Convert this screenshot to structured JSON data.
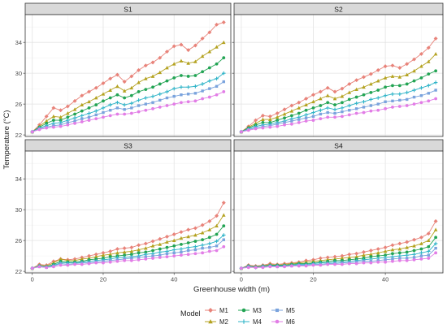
{
  "chart_data": {
    "type": "line",
    "xlabel": "Greenhouse width (m)",
    "ylabel": "Temperature (°C)",
    "xlim": [
      -2,
      56
    ],
    "ylim": [
      21.8,
      37.6
    ],
    "x_ticks": [
      0,
      20,
      40
    ],
    "y_ticks": [
      22,
      26,
      30,
      34
    ],
    "grid": true,
    "legend_position": "bottom",
    "legend_title": "Model",
    "series_meta": [
      {
        "name": "M1",
        "color": "#E8837A",
        "marker": "diamond"
      },
      {
        "name": "M2",
        "color": "#B4A220",
        "marker": "triangle"
      },
      {
        "name": "M3",
        "color": "#23A454",
        "marker": "circle"
      },
      {
        "name": "M4",
        "color": "#2FB4C8",
        "marker": "plus"
      },
      {
        "name": "M5",
        "color": "#7AA3DD",
        "marker": "square"
      },
      {
        "name": "M6",
        "color": "#E27DE6",
        "marker": "circle"
      }
    ],
    "x": [
      0,
      2,
      4,
      6,
      8,
      10,
      12,
      14,
      16,
      18,
      20,
      22,
      24,
      26,
      28,
      30,
      32,
      34,
      36,
      38,
      40,
      42,
      44,
      46,
      48,
      50,
      52,
      54
    ],
    "panels": [
      {
        "title": "S1",
        "series": [
          {
            "name": "M1",
            "values": [
              22.4,
              23.3,
              24.4,
              25.5,
              25.2,
              25.7,
              26.4,
              27.1,
              27.6,
              28.1,
              28.7,
              29.3,
              29.8,
              28.9,
              29.6,
              30.4,
              31.0,
              31.4,
              32.0,
              32.8,
              33.5,
              33.7,
              33.0,
              33.6,
              34.5,
              35.3,
              36.3,
              36.6
            ]
          },
          {
            "name": "M2",
            "values": [
              22.4,
              23.1,
              23.8,
              24.4,
              24.3,
              24.8,
              25.3,
              25.9,
              26.3,
              26.8,
              27.3,
              27.8,
              28.3,
              27.7,
              28.1,
              28.8,
              29.3,
              29.6,
              30.1,
              30.7,
              31.2,
              31.6,
              31.3,
              31.5,
              32.2,
              32.8,
              33.4,
              34.0
            ]
          },
          {
            "name": "M3",
            "values": [
              22.4,
              23.0,
              23.5,
              23.9,
              23.9,
              24.3,
              24.7,
              25.1,
              25.5,
              25.9,
              26.4,
              26.8,
              27.2,
              26.8,
              27.1,
              27.6,
              27.9,
              28.2,
              28.6,
              29.0,
              29.4,
              29.7,
              29.6,
              29.7,
              30.2,
              30.7,
              31.2,
              32.0
            ]
          },
          {
            "name": "M4",
            "values": [
              22.4,
              22.9,
              23.2,
              23.5,
              23.6,
              23.9,
              24.2,
              24.5,
              24.8,
              25.1,
              25.5,
              25.9,
              26.2,
              25.9,
              26.1,
              26.5,
              26.8,
              27.0,
              27.3,
              27.6,
              28.0,
              28.2,
              28.2,
              28.3,
              28.6,
              29.0,
              29.3,
              30.0
            ]
          },
          {
            "name": "M5",
            "values": [
              22.4,
              22.8,
              23.0,
              23.2,
              23.3,
              23.6,
              23.8,
              24.1,
              24.3,
              24.6,
              24.9,
              25.2,
              25.5,
              25.3,
              25.5,
              25.8,
              26.0,
              26.2,
              26.5,
              26.8,
              27.0,
              27.2,
              27.3,
              27.4,
              27.7,
              28.0,
              28.3,
              28.9
            ]
          },
          {
            "name": "M6",
            "values": [
              22.4,
              22.7,
              22.9,
              23.0,
              23.1,
              23.3,
              23.5,
              23.7,
              23.9,
              24.1,
              24.3,
              24.5,
              24.7,
              24.7,
              24.8,
              25.0,
              25.2,
              25.4,
              25.6,
              25.8,
              26.0,
              26.2,
              26.3,
              26.4,
              26.7,
              26.9,
              27.2,
              27.6
            ]
          }
        ]
      },
      {
        "title": "S2",
        "series": [
          {
            "name": "M1",
            "values": [
              22.4,
              23.1,
              23.9,
              24.5,
              24.4,
              24.8,
              25.3,
              25.8,
              26.2,
              26.7,
              27.2,
              27.6,
              28.1,
              27.6,
              28.0,
              28.6,
              29.1,
              29.5,
              29.9,
              30.4,
              30.9,
              31.0,
              30.7,
              31.2,
              31.8,
              32.5,
              33.3,
              34.5
            ]
          },
          {
            "name": "M2",
            "values": [
              22.4,
              23.0,
              23.5,
              24.0,
              24.0,
              24.3,
              24.7,
              25.1,
              25.5,
              25.9,
              26.3,
              26.7,
              27.1,
              26.7,
              27.0,
              27.5,
              27.9,
              28.2,
              28.6,
              29.0,
              29.4,
              29.6,
              29.5,
              29.8,
              30.3,
              30.9,
              31.5,
              32.5
            ]
          },
          {
            "name": "M3",
            "values": [
              22.4,
              22.9,
              23.3,
              23.6,
              23.6,
              23.9,
              24.2,
              24.5,
              24.8,
              25.2,
              25.5,
              25.8,
              26.2,
              25.9,
              26.2,
              26.6,
              26.9,
              27.2,
              27.5,
              27.8,
              28.2,
              28.4,
              28.4,
              28.6,
              29.0,
              29.4,
              29.9,
              30.3
            ]
          },
          {
            "name": "M4",
            "values": [
              22.4,
              22.8,
              23.1,
              23.3,
              23.4,
              23.6,
              23.8,
              24.1,
              24.3,
              24.6,
              24.9,
              25.2,
              25.5,
              25.3,
              25.5,
              25.8,
              26.1,
              26.3,
              26.6,
              26.8,
              27.1,
              27.3,
              27.3,
              27.5,
              27.8,
              28.1,
              28.4,
              28.8
            ]
          },
          {
            "name": "M5",
            "values": [
              22.4,
              22.7,
              22.9,
              23.1,
              23.2,
              23.4,
              23.6,
              23.8,
              24.0,
              24.2,
              24.4,
              24.7,
              24.9,
              24.8,
              25.0,
              25.2,
              25.4,
              25.6,
              25.8,
              26.0,
              26.3,
              26.4,
              26.5,
              26.6,
              26.9,
              27.1,
              27.4,
              27.8
            ]
          },
          {
            "name": "M6",
            "values": [
              22.4,
              22.6,
              22.8,
              22.9,
              23.0,
              23.1,
              23.3,
              23.4,
              23.6,
              23.8,
              23.9,
              24.1,
              24.3,
              24.3,
              24.4,
              24.6,
              24.8,
              24.9,
              25.1,
              25.2,
              25.4,
              25.6,
              25.7,
              25.8,
              26.0,
              26.2,
              26.4,
              26.7
            ]
          }
        ]
      },
      {
        "title": "S3",
        "series": [
          {
            "name": "M1",
            "values": [
              22.4,
              22.9,
              22.8,
              23.3,
              23.6,
              23.5,
              23.6,
              23.8,
              24.0,
              24.2,
              24.4,
              24.6,
              24.9,
              25.0,
              25.1,
              25.4,
              25.6,
              25.9,
              26.2,
              26.5,
              26.8,
              27.1,
              27.4,
              27.6,
              28.0,
              28.5,
              29.2,
              30.9
            ]
          },
          {
            "name": "M2",
            "values": [
              22.4,
              22.8,
              22.7,
              23.1,
              23.6,
              23.4,
              23.4,
              23.6,
              23.7,
              23.9,
              24.1,
              24.2,
              24.4,
              24.5,
              24.6,
              24.8,
              25.0,
              25.3,
              25.5,
              25.8,
              26.0,
              26.3,
              26.5,
              26.7,
              27.0,
              27.4,
              27.9,
              29.3
            ]
          },
          {
            "name": "M3",
            "values": [
              22.4,
              22.7,
              22.6,
              22.9,
              23.3,
              23.2,
              23.2,
              23.3,
              23.5,
              23.6,
              23.7,
              23.9,
              24.0,
              24.1,
              24.2,
              24.4,
              24.5,
              24.7,
              24.9,
              25.1,
              25.3,
              25.5,
              25.7,
              25.9,
              26.1,
              26.4,
              26.8,
              27.9
            ]
          },
          {
            "name": "M4",
            "values": [
              22.4,
              22.7,
              22.6,
              22.8,
              23.1,
              23.1,
              23.1,
              23.2,
              23.3,
              23.4,
              23.5,
              23.6,
              23.8,
              23.8,
              23.9,
              24.0,
              24.2,
              24.3,
              24.5,
              24.6,
              24.8,
              24.9,
              25.1,
              25.2,
              25.4,
              25.6,
              25.9,
              26.7
            ]
          },
          {
            "name": "M5",
            "values": [
              22.4,
              22.6,
              22.5,
              22.7,
              23.0,
              22.9,
              23.0,
              23.1,
              23.1,
              23.2,
              23.3,
              23.4,
              23.5,
              23.6,
              23.7,
              23.8,
              23.9,
              24.0,
              24.1,
              24.3,
              24.4,
              24.5,
              24.7,
              24.8,
              25.0,
              25.1,
              25.3,
              26.1
            ]
          },
          {
            "name": "M6",
            "values": [
              22.4,
              22.6,
              22.5,
              22.6,
              22.8,
              22.8,
              22.9,
              22.9,
              23.0,
              23.1,
              23.1,
              23.2,
              23.3,
              23.4,
              23.4,
              23.5,
              23.6,
              23.7,
              23.8,
              23.9,
              24.0,
              24.1,
              24.2,
              24.3,
              24.4,
              24.6,
              24.7,
              25.2
            ]
          }
        ]
      },
      {
        "title": "S4",
        "series": [
          {
            "name": "M1",
            "values": [
              22.4,
              22.8,
              22.7,
              22.8,
              23.0,
              22.9,
              23.0,
              23.1,
              23.2,
              23.4,
              23.5,
              23.7,
              23.8,
              23.9,
              24.0,
              24.2,
              24.3,
              24.5,
              24.7,
              24.9,
              25.1,
              25.4,
              25.6,
              25.8,
              26.1,
              26.4,
              26.9,
              28.5
            ]
          },
          {
            "name": "M2",
            "values": [
              22.4,
              22.7,
              22.6,
              22.7,
              22.9,
              22.8,
              22.9,
              23.0,
              23.1,
              23.2,
              23.3,
              23.4,
              23.5,
              23.6,
              23.7,
              23.8,
              23.9,
              24.1,
              24.2,
              24.4,
              24.6,
              24.8,
              24.9,
              25.1,
              25.3,
              25.6,
              26.0,
              27.4
            ]
          },
          {
            "name": "M3",
            "values": [
              22.4,
              22.7,
              22.6,
              22.7,
              22.8,
              22.8,
              22.8,
              22.9,
              23.0,
              23.0,
              23.1,
              23.2,
              23.3,
              23.4,
              23.4,
              23.5,
              23.6,
              23.7,
              23.9,
              24.0,
              24.1,
              24.3,
              24.4,
              24.5,
              24.7,
              24.9,
              25.2,
              26.4
            ]
          },
          {
            "name": "M4",
            "values": [
              22.4,
              22.6,
              22.5,
              22.6,
              22.7,
              22.7,
              22.7,
              22.8,
              22.9,
              22.9,
              23.0,
              23.1,
              23.1,
              23.2,
              23.2,
              23.3,
              23.4,
              23.5,
              23.6,
              23.7,
              23.8,
              23.9,
              24.0,
              24.1,
              24.2,
              24.4,
              24.6,
              25.6
            ]
          },
          {
            "name": "M5",
            "values": [
              22.4,
              22.6,
              22.5,
              22.6,
              22.7,
              22.6,
              22.7,
              22.7,
              22.8,
              22.8,
              22.9,
              22.9,
              23.0,
              23.0,
              23.1,
              23.1,
              23.2,
              23.3,
              23.3,
              23.4,
              23.5,
              23.6,
              23.7,
              23.7,
              23.8,
              24.0,
              24.1,
              25.0
            ]
          },
          {
            "name": "M6",
            "values": [
              22.4,
              22.5,
              22.5,
              22.5,
              22.6,
              22.6,
              22.6,
              22.7,
              22.7,
              22.7,
              22.8,
              22.8,
              22.9,
              22.9,
              22.9,
              23.0,
              23.0,
              23.1,
              23.1,
              23.2,
              23.2,
              23.3,
              23.4,
              23.4,
              23.5,
              23.6,
              23.7,
              24.4
            ]
          }
        ]
      }
    ]
  }
}
